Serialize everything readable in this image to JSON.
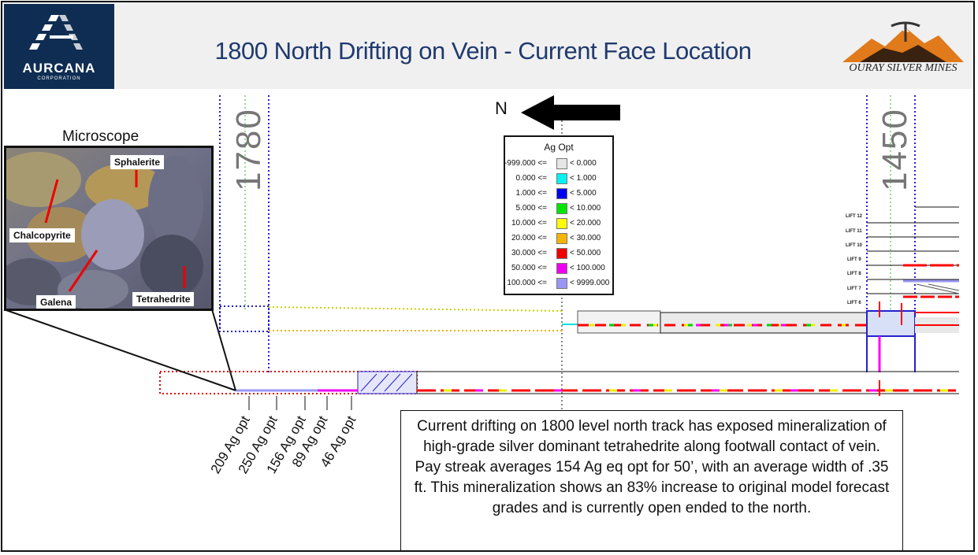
{
  "header": {
    "title": "1800 North Drifting on Vein - Current Face Location",
    "left_logo": {
      "name": "AURCANA",
      "sub": "CORPORATION"
    },
    "right_logo": {
      "name": "OURAY SILVER MINES"
    }
  },
  "microscope": {
    "title": "Microscope",
    "labels": {
      "sphalerite": "Sphalerite",
      "chalcopyrite": "Chalcopyrite",
      "galena": "Galena",
      "tetrahedrite": "Tetrahedrite"
    }
  },
  "section": {
    "north_label": "N",
    "line_labels": [
      "1780",
      "1450"
    ],
    "lift_labels": [
      "LIFT 12",
      "LIFT 11",
      "LIFT 10",
      "LIFT 9",
      "LIFT 8",
      "LIFT 7",
      "LIFT 6"
    ],
    "assays": [
      "209 Ag opt",
      "250 Ag opt",
      "156 Ag opt",
      "89 Ag opt",
      "46 Ag opt"
    ]
  },
  "legend": {
    "title": "Ag Opt",
    "rows": [
      {
        "min": "-999.000 <=",
        "max": "< 0.000",
        "color": "#e6e6e6"
      },
      {
        "min": "0.000 <=",
        "max": "< 1.000",
        "color": "#00f2f2"
      },
      {
        "min": "1.000 <=",
        "max": "< 5.000",
        "color": "#0000f0"
      },
      {
        "min": "5.000 <=",
        "max": "< 10.000",
        "color": "#00e600"
      },
      {
        "min": "10.000 <=",
        "max": "< 20.000",
        "color": "#ffff00"
      },
      {
        "min": "20.000 <=",
        "max": "< 30.000",
        "color": "#f5b400"
      },
      {
        "min": "30.000 <=",
        "max": "< 50.000",
        "color": "#f00000"
      },
      {
        "min": "50.000 <=",
        "max": "< 100.000",
        "color": "#f000f0"
      },
      {
        "min": "100.000 <=",
        "max": "< 9999.000",
        "color": "#9a96f5"
      }
    ]
  },
  "callout": {
    "text": "Current drifting on 1800 level north track has exposed mineralization of high-grade silver dominant tetrahedrite along footwall contact of vein.  Pay streak averages 154 Ag eq opt for 50’, with an average width of .35 ft.  This mineralization shows an 83% increase to original model forecast grades and is currently open ended to the north."
  },
  "colors": {
    "brand_navy": "#0f2d52",
    "title_blue": "#1f3a6e",
    "section_blue": "#2222cc",
    "section_red": "#e00000"
  }
}
